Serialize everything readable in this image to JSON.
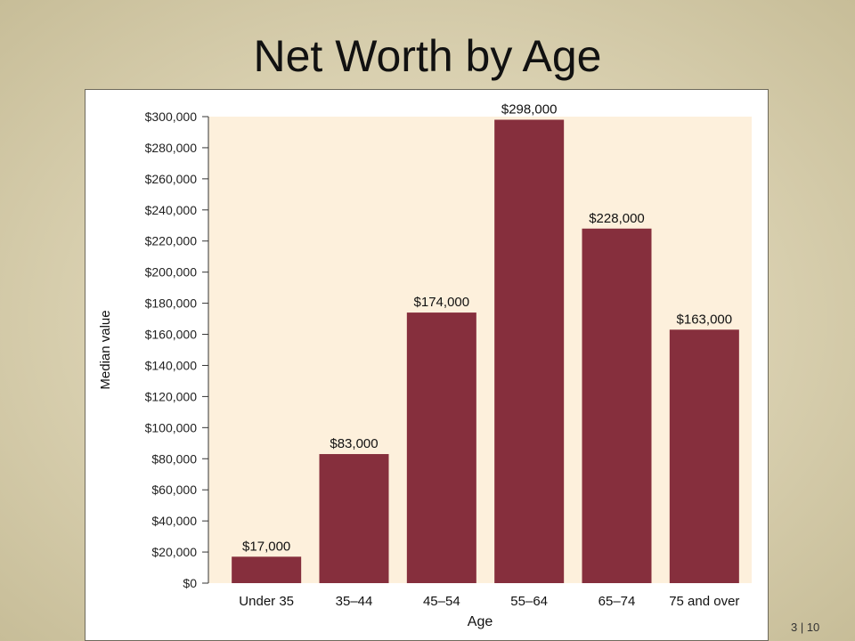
{
  "slide": {
    "title": "Net Worth by Age",
    "page_number": "3 | 10"
  },
  "colors": {
    "bar": "#862f3d",
    "plot_background": "#fdf0dc",
    "axis": "#333333"
  },
  "chart_data": {
    "type": "bar",
    "title": "",
    "xlabel": "Age",
    "ylabel": "Median value",
    "categories": [
      "Under 35",
      "35–44",
      "45–54",
      "55–64",
      "65–74",
      "75 and over"
    ],
    "values": [
      17000,
      83000,
      174000,
      298000,
      228000,
      163000
    ],
    "value_labels": [
      "$17,000",
      "$83,000",
      "$174,000",
      "$298,000",
      "$228,000",
      "$163,000"
    ],
    "ylim": [
      0,
      300000
    ],
    "yticks": [
      0,
      20000,
      40000,
      60000,
      80000,
      100000,
      120000,
      140000,
      160000,
      180000,
      200000,
      220000,
      240000,
      260000,
      280000,
      300000
    ],
    "ytick_labels": [
      "$0",
      "$20,000",
      "$40,000",
      "$60,000",
      "$80,000",
      "$100,000",
      "$120,000",
      "$140,000",
      "$160,000",
      "$180,000",
      "$200,000",
      "$220,000",
      "$240,000",
      "$260,000",
      "$280,000",
      "$300,000"
    ],
    "grid": false,
    "legend": "none"
  }
}
